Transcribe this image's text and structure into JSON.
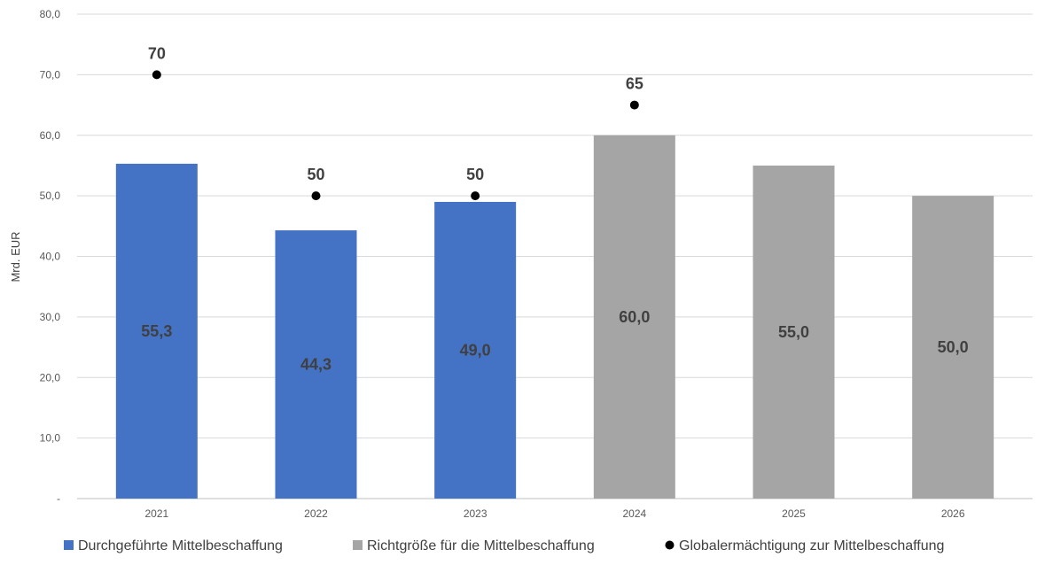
{
  "chart_data": {
    "type": "bar",
    "ylabel": "Mrd. EUR",
    "ylim": [
      0,
      80
    ],
    "y_ticks": [
      0,
      10,
      20,
      30,
      40,
      50,
      60,
      70,
      80
    ],
    "y_tick_labels": [
      "-",
      "10,0",
      "20,0",
      "30,0",
      "40,0",
      "50,0",
      "60,0",
      "70,0",
      "80,0"
    ],
    "categories": [
      "2021",
      "2022",
      "2023",
      "2024",
      "2025",
      "2026"
    ],
    "grid": true,
    "legend_position": "bottom",
    "series": [
      {
        "name": "Durchgeführte Mittelbeschaffung",
        "kind": "bar",
        "color": "#4472C4",
        "values": [
          55.3,
          44.3,
          49.0,
          null,
          null,
          null
        ],
        "labels": [
          "55,3",
          "44,3",
          "49,0",
          null,
          null,
          null
        ]
      },
      {
        "name": "Richtgröße für die Mittelbeschaffung",
        "kind": "bar",
        "color": "#A5A5A5",
        "values": [
          null,
          null,
          null,
          60.0,
          55.0,
          50.0
        ],
        "labels": [
          null,
          null,
          null,
          "60,0",
          "55,0",
          "50,0"
        ]
      },
      {
        "name": "Globalermächtigung zur Mittelbeschaffung",
        "kind": "point",
        "color": "#000000",
        "values": [
          70,
          50,
          50,
          65,
          null,
          null
        ],
        "labels": [
          "70",
          "50",
          "50",
          "65",
          null,
          null
        ]
      }
    ]
  }
}
